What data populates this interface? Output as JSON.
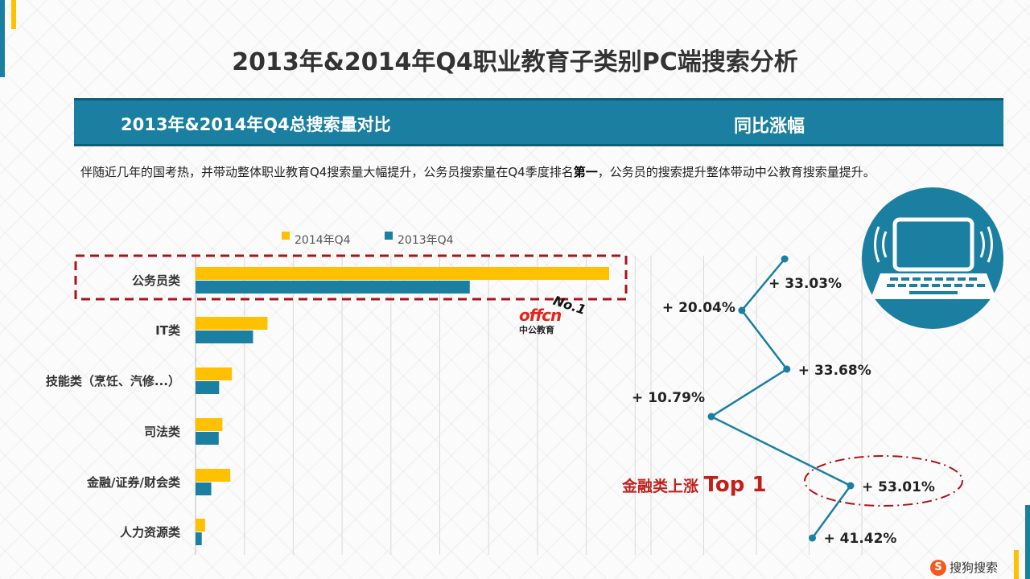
{
  "title": "2013年&2014年Q4职业教育子类别PC端搜索分析",
  "band": {
    "left_title": "2013年&2014年Q4总搜索量对比",
    "right_title": "同比涨幅"
  },
  "description": {
    "part1": "伴随近几年的国考热，并带动整体职业教育Q4搜索量大幅提升，公务员搜索量在Q4季度排名",
    "bold": "第一",
    "part2": "，公务员的搜索提升整体带动中公教育搜索量提升。"
  },
  "logo": {
    "brand": "offcn",
    "brand_cn": "中公教育",
    "badge": "No.1"
  },
  "finance_callout": {
    "text": "金融类上涨",
    "top": "Top 1"
  },
  "footer": {
    "brand": "搜狗搜索",
    "icon": "sogou-logo-icon"
  },
  "colors": {
    "series_2014": "#ffc000",
    "series_2013": "#1a7fa0",
    "highlight": "#c0201c",
    "accent": "#1a7fa0"
  },
  "icons": {
    "laptop": "laptop-wifi-icon"
  },
  "chart_data": [
    {
      "type": "bar",
      "orientation": "horizontal",
      "categories": [
        "公务员类",
        "IT类",
        "技能类（烹饪、汽修...）",
        "司法类",
        "金融/证券/财会类",
        "人力资源类"
      ],
      "series": [
        {
          "name": "2014年Q4",
          "values": [
            100,
            17.4,
            8.8,
            6.5,
            8.4,
            2.3
          ]
        },
        {
          "name": "2013年Q4",
          "values": [
            66.3,
            13.9,
            5.7,
            5.6,
            3.8,
            1.5
          ]
        }
      ],
      "xlim": [
        0,
        105
      ],
      "grid": true,
      "legend": "top",
      "highlight_category": "公务员类"
    },
    {
      "type": "line",
      "orientation": "vertical-profile",
      "categories": [
        "公务员类",
        "IT类",
        "技能类（烹饪、汽修...）",
        "司法类",
        "金融/证券/财会类",
        "人力资源类"
      ],
      "values": [
        33.03,
        20.04,
        33.68,
        10.79,
        53.01,
        41.42
      ],
      "labels": [
        "+ 33.03%",
        "+ 20.04%",
        "+ 33.68%",
        "+ 10.79%",
        "+ 53.01%",
        "+ 41.42%"
      ],
      "xlim": [
        0,
        60
      ],
      "highlight_category": "金融/证券/财会类"
    }
  ]
}
